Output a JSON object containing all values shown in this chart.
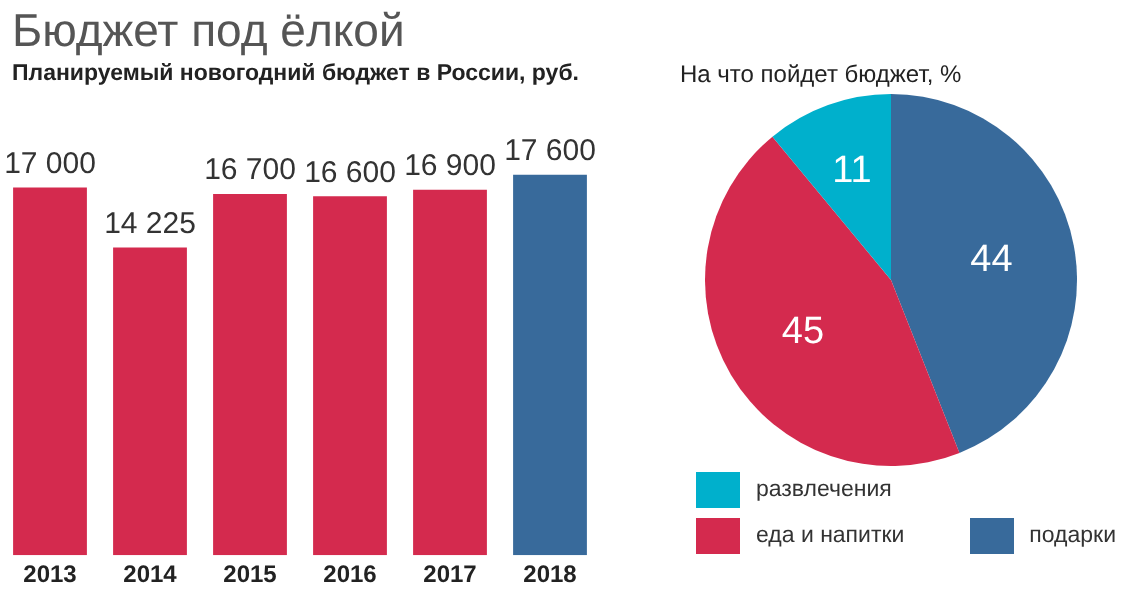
{
  "chart_data": [
    {
      "type": "bar",
      "title": "Бюджет под ёлкой",
      "subtitle": "Планируемый новогодний бюджет в России, руб.",
      "categories": [
        "2013",
        "2014",
        "2015",
        "2016",
        "2017",
        "2018"
      ],
      "values": [
        17000,
        14225,
        16700,
        16600,
        16900,
        17600
      ],
      "colors": [
        "#d42a4e",
        "#d42a4e",
        "#d42a4e",
        "#d42a4e",
        "#d42a4e",
        "#386a9b"
      ],
      "value_labels": [
        "17 000",
        "14 225",
        "16 700",
        "16 600",
        "16 900",
        "17 600"
      ],
      "legend": false,
      "grid": false
    },
    {
      "type": "pie",
      "title": "На что пойдет бюджет, %",
      "categories": [
        "подарки",
        "еда и напитки",
        "развлечения"
      ],
      "values": [
        44,
        45,
        11
      ],
      "colors": [
        "#386a9b",
        "#d42a4e",
        "#00b0cc"
      ],
      "data_labels": true,
      "legend": "bottom"
    }
  ]
}
